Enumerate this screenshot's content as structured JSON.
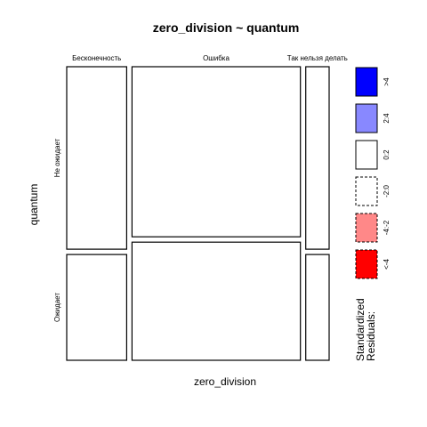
{
  "chart_data": {
    "type": "mosaic",
    "title": "zero_division ~ quantum",
    "xlabel": "zero_division",
    "ylabel": "quantum",
    "x_categories": [
      "Бесконечность",
      "Ошибка",
      "Так нельзя делать"
    ],
    "y_categories": [
      "Не ожидает",
      "Ожидает"
    ],
    "x_proportions": [
      0.238,
      0.669,
      0.093
    ],
    "conditional_y_proportions": [
      [
        0.633,
        0.367
      ],
      [
        0.59,
        0.41
      ],
      [
        0.633,
        0.367
      ]
    ],
    "residual_classes": [
      [
        "<-2:0",
        "0:2",
        "<-2:0"
      ],
      [
        "0:2",
        "<-2:0",
        "0:2"
      ]
    ],
    "legend": {
      "title_lines": [
        "Standardized",
        "Residuals:"
      ],
      "placement": "right",
      "items": [
        {
          "label": ">4",
          "color": "#0000ff",
          "dashed": false
        },
        {
          "label": "2:4",
          "color": "#8888ff",
          "dashed": false
        },
        {
          "label": "0:2",
          "color": "#ffffff",
          "dashed": false
        },
        {
          "label": "-2:0",
          "color": "#ffffff",
          "dashed": true
        },
        {
          "label": "-4:-2",
          "color": "#ff8888",
          "dashed": true
        },
        {
          "label": "<-4",
          "color": "#ff0000",
          "dashed": true
        }
      ]
    }
  }
}
